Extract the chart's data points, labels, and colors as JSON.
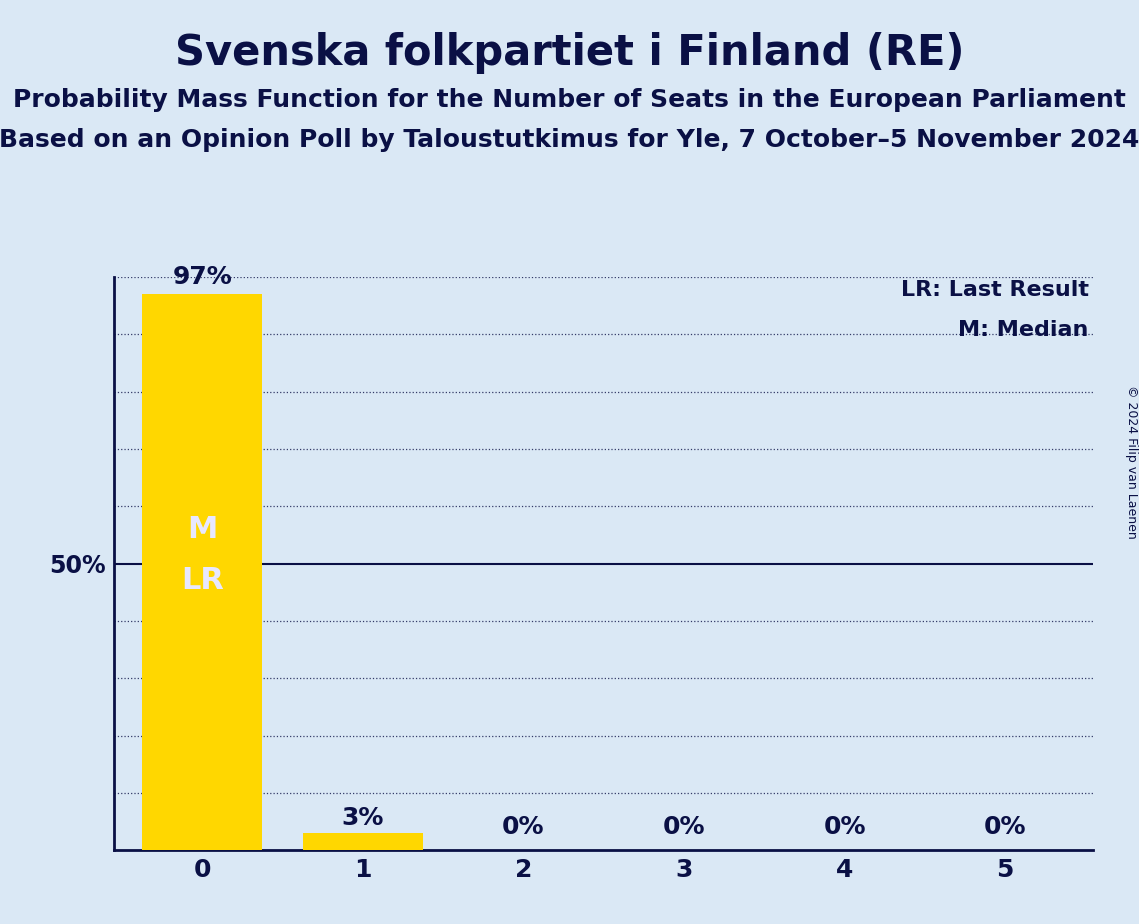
{
  "title": "Svenska folkpartiet i Finland (RE)",
  "subtitle1": "Probability Mass Function for the Number of Seats in the European Parliament",
  "subtitle2": "Based on an Opinion Poll by Taloustutkimus for Yle, 7 October–5 November 2024",
  "copyright": "© 2024 Filip van Laenen",
  "categories": [
    0,
    1,
    2,
    3,
    4,
    5
  ],
  "values": [
    97,
    3,
    0,
    0,
    0,
    0
  ],
  "bar_color": "#FFD700",
  "bg_color": "#DAE8F5",
  "bar_label_color": "#E8E8FF",
  "text_color": "#0A1045",
  "median_seat": 0,
  "last_result_seat": 0,
  "yticks_dotted": [
    10,
    20,
    30,
    40,
    60,
    70,
    80,
    90,
    100
  ],
  "ytick_solid": 50,
  "legend_lr": "LR: Last Result",
  "legend_m": "M: Median",
  "ylabel_50": "50%",
  "title_fontsize": 30,
  "subtitle_fontsize": 18,
  "label_fontsize": 17,
  "tick_fontsize": 18,
  "bar_label_fontsize": 18,
  "inside_label_fontsize": 22,
  "legend_fontsize": 16,
  "copyright_fontsize": 9,
  "ylim": [
    0,
    100
  ]
}
